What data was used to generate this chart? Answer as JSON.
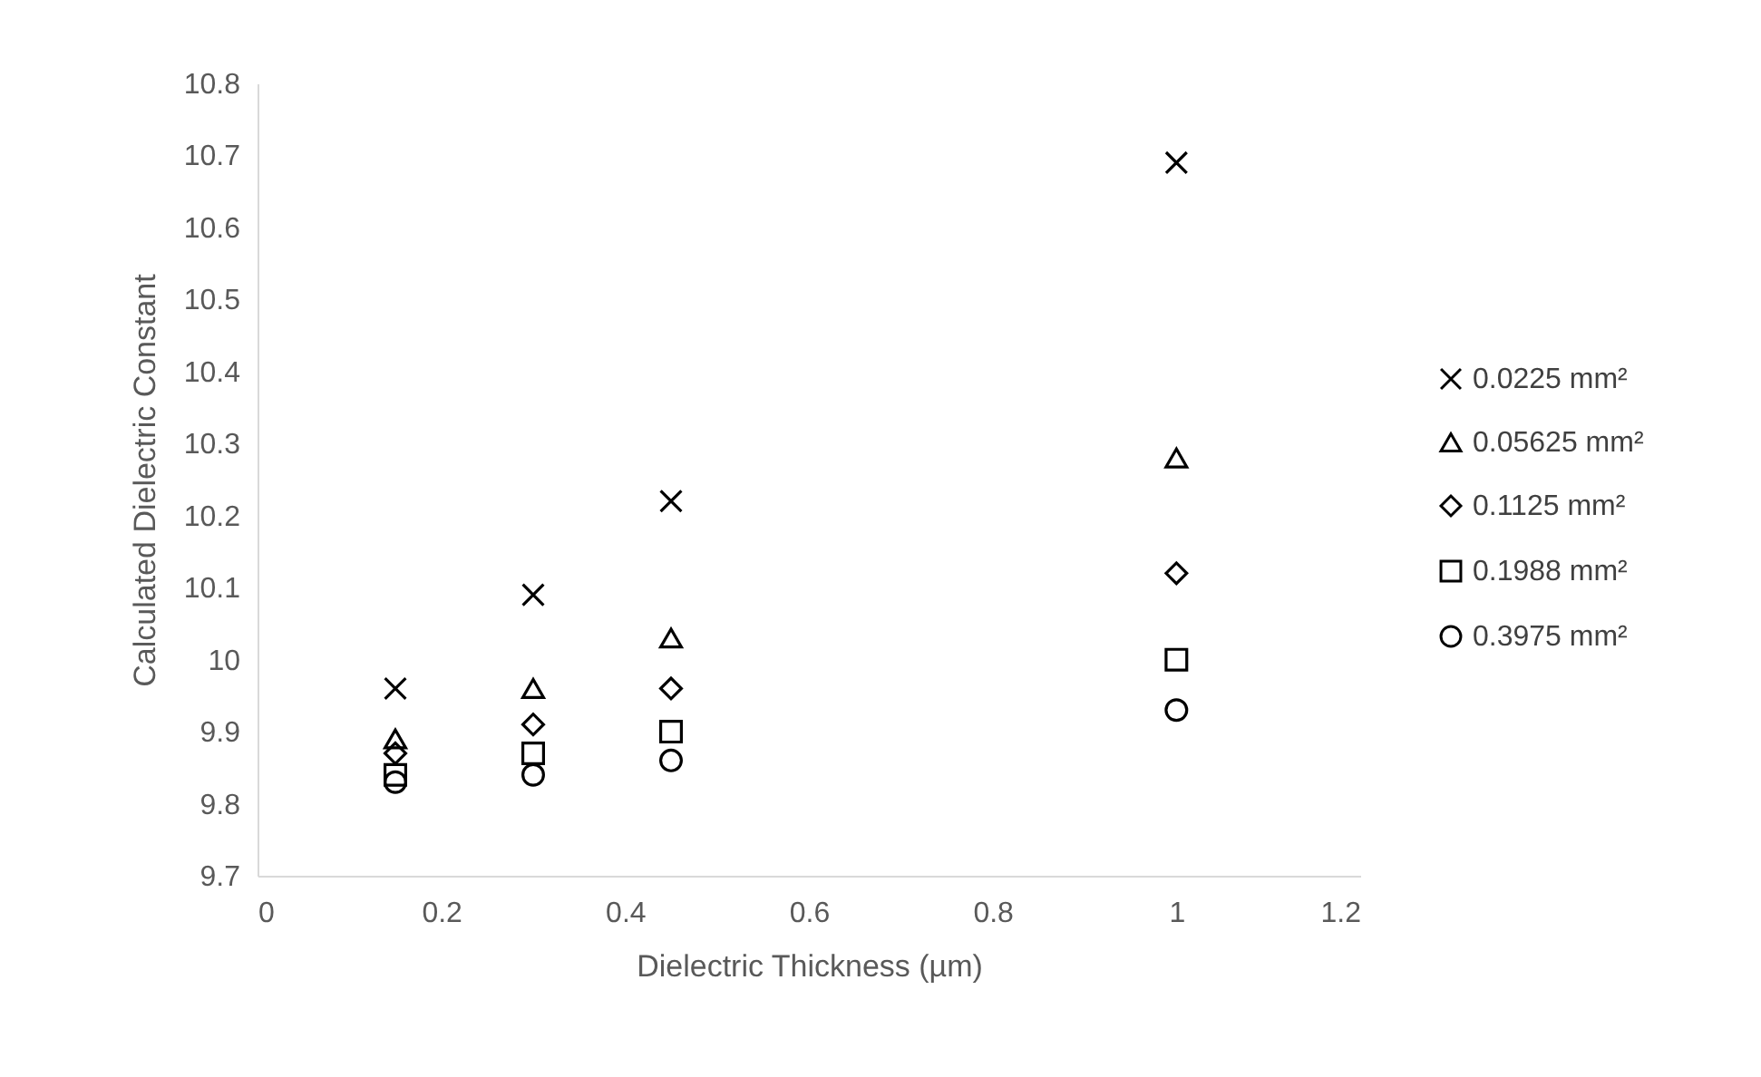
{
  "chart_data": {
    "type": "scatter",
    "xlabel": "Dielectric Thickness (µm)",
    "ylabel": "Calculated Dielectric Constant",
    "xlim": [
      0,
      1.2
    ],
    "xticks": [
      0,
      0.2,
      0.4,
      0.6,
      0.8,
      1,
      1.2
    ],
    "ylim": [
      9.7,
      10.8
    ],
    "yticks": [
      9.7,
      9.8,
      9.9,
      10,
      10.1,
      10.2,
      10.3,
      10.4,
      10.5,
      10.6,
      10.7,
      10.8
    ],
    "grid": false,
    "legend": "right",
    "x": [
      0.15,
      0.3,
      0.45,
      1
    ],
    "series": [
      {
        "name": "0.0225 mm²",
        "color": "#000000",
        "marker": "cross",
        "values": [
          9.96,
          10.09,
          10.22,
          10.69
        ]
      },
      {
        "name": "0.05625 mm²",
        "color": "#000000",
        "marker": "triangle",
        "values": [
          9.89,
          9.96,
          10.03,
          10.28
        ]
      },
      {
        "name": "0.1125 mm²",
        "color": "#000000",
        "marker": "diamond",
        "values": [
          9.87,
          9.91,
          9.96,
          10.12
        ]
      },
      {
        "name": "0.1988 mm²",
        "color": "#000000",
        "marker": "square",
        "values": [
          9.84,
          9.87,
          9.9,
          10
        ]
      },
      {
        "name": "0.3975 mm²",
        "color": "#000000",
        "marker": "circle",
        "values": [
          9.83,
          9.84,
          9.86,
          9.93
        ]
      }
    ]
  }
}
